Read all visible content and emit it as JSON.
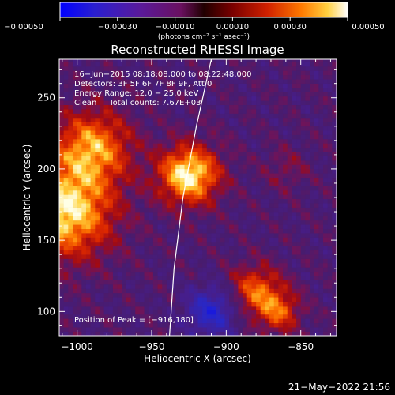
{
  "chart_data": {
    "type": "heatmap",
    "title": "Reconstructed RHESSI Image",
    "xlabel": "Heliocentric X (arcsec)",
    "ylabel": "Heliocentric Y (arcsec)",
    "xlim": [
      -1012,
      -826
    ],
    "ylim": [
      83,
      277
    ],
    "x_ticks": [
      -1000,
      -950,
      -900,
      -850
    ],
    "x_tick_labels": [
      "−1000",
      "−950",
      "−900",
      "−850"
    ],
    "y_ticks": [
      100,
      150,
      200,
      250
    ],
    "y_tick_labels": [
      "100",
      "150",
      "200",
      "250"
    ],
    "colorbar": {
      "range": [
        -0.0005,
        0.0005
      ],
      "ticks": [
        -0.0005,
        -0.0003,
        -0.0001,
        0.0001,
        0.0003,
        0.0005
      ],
      "tick_labels": [
        "−0.00050",
        "−0.00030",
        "−0.00010",
        "0.00010",
        "0.00030",
        "0.00050"
      ],
      "unit_label": "(photons cm⁻² s⁻¹ asec⁻²)"
    },
    "annotations": {
      "time_range": "16−Jun−2015 08:18:08.000 to 08:22:48.000",
      "detectors": "Detectors: 3F 5F 6F 7F 8F 9F, Att 0",
      "energy_range": "Energy Range: 12.0 − 25.0 keV",
      "clean_counts": "Clean     Total counts: 7.67E+03",
      "peak": "Position of Peak = [−916,180]"
    },
    "peak_position": [
      -916,
      180
    ],
    "limb_curve": [
      [
        -938,
        83
      ],
      [
        -935,
        130
      ],
      [
        -929,
        180
      ],
      [
        -920,
        230
      ],
      [
        -910,
        277
      ]
    ],
    "sources": [
      {
        "x": -925,
        "y": 196,
        "sigma": 14,
        "amp": 1.0
      },
      {
        "x": -1008,
        "y": 170,
        "sigma": 22,
        "amp": 0.95
      },
      {
        "x": -990,
        "y": 215,
        "sigma": 18,
        "amp": 0.75
      },
      {
        "x": -880,
        "y": 115,
        "sigma": 12,
        "amp": 0.6
      },
      {
        "x": -865,
        "y": 100,
        "sigma": 10,
        "amp": 0.55
      },
      {
        "x": -910,
        "y": 100,
        "sigma": 12,
        "amp": -0.6
      },
      {
        "x": -860,
        "y": 200,
        "sigma": 10,
        "amp": 0.18
      }
    ]
  },
  "footer": {
    "date": "21−May−2022 21:56"
  }
}
